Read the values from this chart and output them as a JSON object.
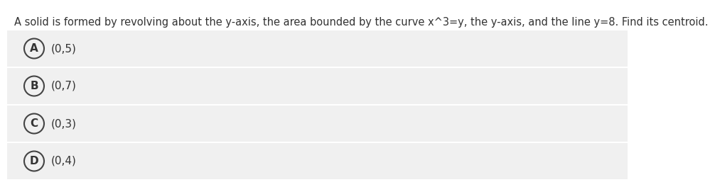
{
  "title": "A solid is formed by revolving about the y-axis, the area bounded by the curve x^3=y, the y-axis, and the line y=8. Find its centroid.",
  "options": [
    {
      "label": "A",
      "text": "(0,5)"
    },
    {
      "label": "B",
      "text": "(0,7)"
    },
    {
      "label": "C",
      "text": "(0,3)"
    },
    {
      "label": "D",
      "text": "(0,4)"
    }
  ],
  "bg_color": "#ffffff",
  "option_bg_color": "#f0f0f0",
  "title_fontsize": 10.5,
  "option_fontsize": 11,
  "text_color": "#333333",
  "separator_color": "#dddddd",
  "title_color": "#333333",
  "circle_color": "#444444"
}
